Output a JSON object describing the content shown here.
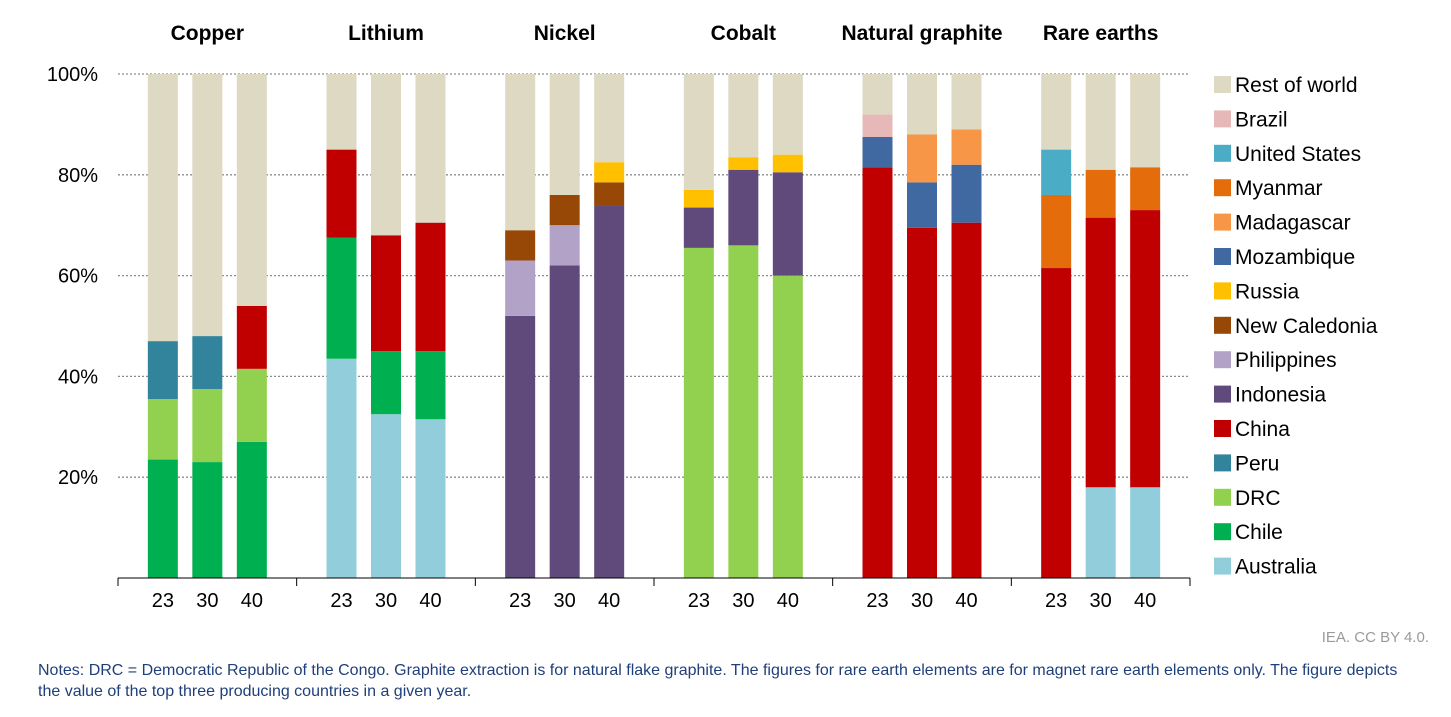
{
  "chart_data": {
    "type": "bar",
    "stacked": true,
    "ylim": [
      0,
      100
    ],
    "yticks": [
      {
        "value": 20,
        "label": "20%"
      },
      {
        "value": 40,
        "label": "40%"
      },
      {
        "value": 60,
        "label": "60%"
      },
      {
        "value": 80,
        "label": "80%"
      },
      {
        "value": 100,
        "label": "100%"
      }
    ],
    "grid": "horizontal dotted",
    "legend_position": "right",
    "countries": [
      {
        "name": "Rest of world",
        "color": "#ddd9c3"
      },
      {
        "name": "Brazil",
        "color": "#e6b9b8"
      },
      {
        "name": "United States",
        "color": "#4bacc6"
      },
      {
        "name": "Myanmar",
        "color": "#e46c0a"
      },
      {
        "name": "Madagascar",
        "color": "#f79646"
      },
      {
        "name": "Mozambique",
        "color": "#4069a1"
      },
      {
        "name": "Russia",
        "color": "#ffc000"
      },
      {
        "name": "New Caledonia",
        "color": "#974706"
      },
      {
        "name": "Philippines",
        "color": "#b3a2c7"
      },
      {
        "name": "Indonesia",
        "color": "#604a7b"
      },
      {
        "name": "China",
        "color": "#c00000"
      },
      {
        "name": "Peru",
        "color": "#31849b"
      },
      {
        "name": "DRC",
        "color": "#92d050"
      },
      {
        "name": "Chile",
        "color": "#00b050"
      },
      {
        "name": "Australia",
        "color": "#92cddc"
      }
    ],
    "groups": [
      {
        "title": "Copper",
        "bars": [
          {
            "year": "23",
            "segments": [
              {
                "country": "Chile",
                "value": 23.5
              },
              {
                "country": "DRC",
                "value": 12
              },
              {
                "country": "Peru",
                "value": 11.5
              },
              {
                "country": "Rest of world",
                "value": 53
              }
            ]
          },
          {
            "year": "30",
            "segments": [
              {
                "country": "Chile",
                "value": 23
              },
              {
                "country": "DRC",
                "value": 14.5
              },
              {
                "country": "Peru",
                "value": 10.5
              },
              {
                "country": "Rest of world",
                "value": 52
              }
            ]
          },
          {
            "year": "40",
            "segments": [
              {
                "country": "Chile",
                "value": 27
              },
              {
                "country": "DRC",
                "value": 14.5
              },
              {
                "country": "China",
                "value": 12.5
              },
              {
                "country": "Rest of world",
                "value": 46
              }
            ]
          }
        ]
      },
      {
        "title": "Lithium",
        "bars": [
          {
            "year": "23",
            "segments": [
              {
                "country": "Australia",
                "value": 43.5
              },
              {
                "country": "Chile",
                "value": 24
              },
              {
                "country": "China",
                "value": 17.5
              },
              {
                "country": "Rest of world",
                "value": 15
              }
            ]
          },
          {
            "year": "30",
            "segments": [
              {
                "country": "Australia",
                "value": 32.5
              },
              {
                "country": "Chile",
                "value": 12.5
              },
              {
                "country": "China",
                "value": 23
              },
              {
                "country": "Rest of world",
                "value": 32
              }
            ]
          },
          {
            "year": "40",
            "segments": [
              {
                "country": "Australia",
                "value": 31.5
              },
              {
                "country": "Chile",
                "value": 13.5
              },
              {
                "country": "China",
                "value": 25.5
              },
              {
                "country": "Rest of world",
                "value": 29.5
              }
            ]
          }
        ]
      },
      {
        "title": "Nickel",
        "bars": [
          {
            "year": "23",
            "segments": [
              {
                "country": "Indonesia",
                "value": 52
              },
              {
                "country": "Philippines",
                "value": 11
              },
              {
                "country": "New Caledonia",
                "value": 6
              },
              {
                "country": "Rest of world",
                "value": 31
              }
            ]
          },
          {
            "year": "30",
            "segments": [
              {
                "country": "Indonesia",
                "value": 62
              },
              {
                "country": "Philippines",
                "value": 8
              },
              {
                "country": "New Caledonia",
                "value": 6
              },
              {
                "country": "Rest of world",
                "value": 24
              }
            ]
          },
          {
            "year": "40",
            "segments": [
              {
                "country": "Indonesia",
                "value": 74
              },
              {
                "country": "New Caledonia",
                "value": 4.5
              },
              {
                "country": "Russia",
                "value": 4
              },
              {
                "country": "Rest of world",
                "value": 17.5
              }
            ]
          }
        ]
      },
      {
        "title": "Cobalt",
        "bars": [
          {
            "year": "23",
            "segments": [
              {
                "country": "DRC",
                "value": 65.5
              },
              {
                "country": "Indonesia",
                "value": 8
              },
              {
                "country": "Russia",
                "value": 3.5
              },
              {
                "country": "Rest of world",
                "value": 23
              }
            ]
          },
          {
            "year": "30",
            "segments": [
              {
                "country": "DRC",
                "value": 66
              },
              {
                "country": "Indonesia",
                "value": 15
              },
              {
                "country": "Russia",
                "value": 2.5
              },
              {
                "country": "Rest of world",
                "value": 16.5
              }
            ]
          },
          {
            "year": "40",
            "segments": [
              {
                "country": "DRC",
                "value": 60
              },
              {
                "country": "Indonesia",
                "value": 20.5
              },
              {
                "country": "Russia",
                "value": 3.5
              },
              {
                "country": "Rest of world",
                "value": 16
              }
            ]
          }
        ]
      },
      {
        "title": "Natural graphite",
        "bars": [
          {
            "year": "23",
            "segments": [
              {
                "country": "China",
                "value": 81.5
              },
              {
                "country": "Mozambique",
                "value": 6
              },
              {
                "country": "Brazil",
                "value": 4.5
              },
              {
                "country": "Rest of world",
                "value": 8
              }
            ]
          },
          {
            "year": "30",
            "segments": [
              {
                "country": "China",
                "value": 69.5
              },
              {
                "country": "Mozambique",
                "value": 9
              },
              {
                "country": "Madagascar",
                "value": 9.5
              },
              {
                "country": "Rest of world",
                "value": 12
              }
            ]
          },
          {
            "year": "40",
            "segments": [
              {
                "country": "China",
                "value": 70.5
              },
              {
                "country": "Mozambique",
                "value": 11.5
              },
              {
                "country": "Madagascar",
                "value": 7
              },
              {
                "country": "Rest of world",
                "value": 11
              }
            ]
          }
        ]
      },
      {
        "title": "Rare earths",
        "bars": [
          {
            "year": "23",
            "segments": [
              {
                "country": "China",
                "value": 61.5
              },
              {
                "country": "Myanmar",
                "value": 14.5
              },
              {
                "country": "United States",
                "value": 9
              },
              {
                "country": "Rest of world",
                "value": 15
              }
            ]
          },
          {
            "year": "30",
            "segments": [
              {
                "country": "Australia",
                "value": 18
              },
              {
                "country": "China",
                "value": 53.5
              },
              {
                "country": "Myanmar",
                "value": 9.5
              },
              {
                "country": "Rest of world",
                "value": 19
              }
            ]
          },
          {
            "year": "40",
            "segments": [
              {
                "country": "Australia",
                "value": 18
              },
              {
                "country": "China",
                "value": 55
              },
              {
                "country": "Myanmar",
                "value": 8.5
              },
              {
                "country": "Rest of world",
                "value": 18.5
              }
            ]
          }
        ]
      }
    ]
  },
  "credit": "IEA. CC BY 4.0.",
  "notes": "Notes: DRC = Democratic Republic of the Congo. Graphite extraction is for natural flake graphite. The figures for rare earth elements are for magnet rare earth elements only. The figure depicts the value of the top three producing countries in a given year."
}
